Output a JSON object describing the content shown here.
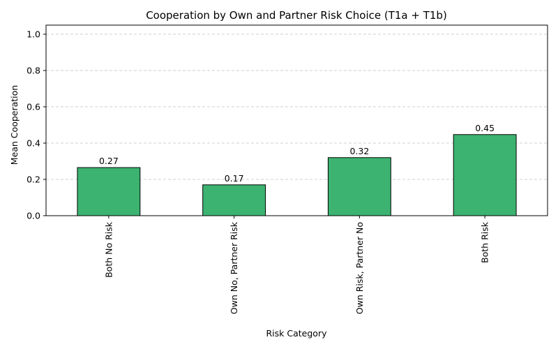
{
  "chart_data": {
    "type": "bar",
    "title": "Cooperation by Own and Partner Risk Choice (T1a + T1b)",
    "xlabel": "Risk Category",
    "ylabel": "Mean Cooperation",
    "categories": [
      "Both No Risk",
      "Own No, Partner Risk",
      "Own Risk, Partner No",
      "Both Risk"
    ],
    "values": [
      0.265,
      0.17,
      0.32,
      0.447
    ],
    "data_labels": [
      "0.27",
      "0.17",
      "0.32",
      "0.45"
    ],
    "ylim": [
      0,
      1.05
    ],
    "yticks": [
      0.0,
      0.2,
      0.4,
      0.6,
      0.8,
      1.0
    ],
    "ytick_labels": [
      "0.0",
      "0.2",
      "0.4",
      "0.6",
      "0.8",
      "1.0"
    ],
    "grid": "y-dashed",
    "colors": {
      "bar": "#3cb371",
      "edge": "#000000",
      "grid": "#cfcfcf"
    }
  }
}
